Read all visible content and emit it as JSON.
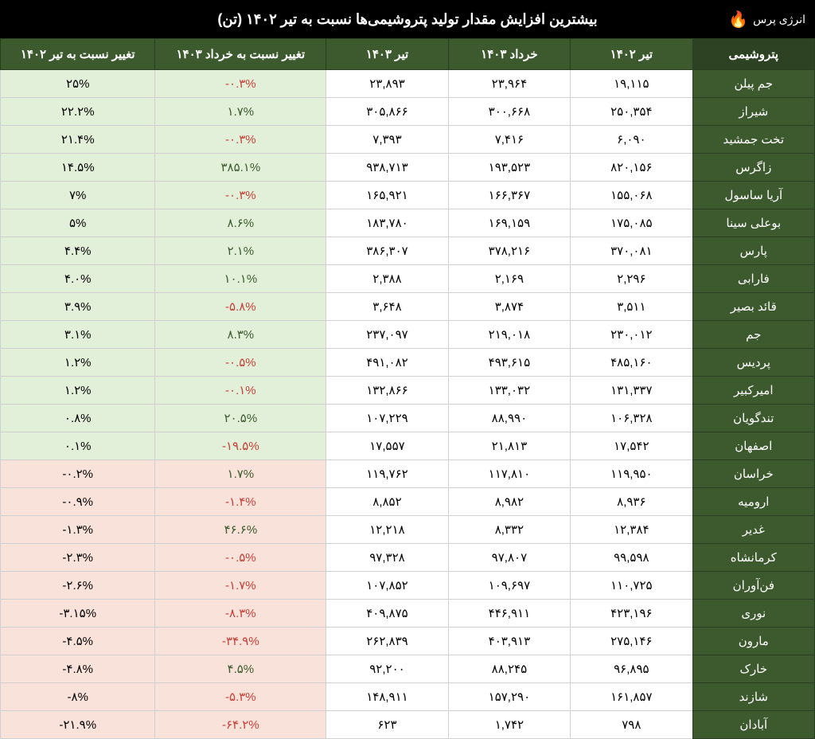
{
  "title": "بیشترین افزایش مقدار تولید پتروشیمی‌ها نسبت به تیر ۱۴۰۲  (تن)",
  "logo_text": "انرژی پرس",
  "columns": {
    "name": "پتروشیمی",
    "tir1402": "تیر ۱۴۰۲",
    "khordad1403": "خرداد ۱۴۰۳",
    "tir1403": "تیر ۱۴۰۳",
    "chg_khordad": "تغییر نسبت به خرداد ۱۴۰۳",
    "chg_tir": "تغییر نسبت به تیر ۱۴۰۲"
  },
  "rows": [
    {
      "name": "جم پیلن",
      "tir1402": "۱۹,۱۱۵",
      "khordad1403": "۲۳,۹۶۴",
      "tir1403": "۲۳,۸۹۳",
      "chg_k": "-۰.۳%",
      "chg_k_sign": "neg",
      "chg_t": "۲۵%",
      "chg_t_sign": "pos"
    },
    {
      "name": "شیراز",
      "tir1402": "۲۵۰,۳۵۴",
      "khordad1403": "۳۰۰,۶۶۸",
      "tir1403": "۳۰۵,۸۶۶",
      "chg_k": "۱.۷%",
      "chg_k_sign": "pos",
      "chg_t": "۲۲.۲%",
      "chg_t_sign": "pos"
    },
    {
      "name": "تخت جمشید",
      "tir1402": "۶,۰۹۰",
      "khordad1403": "۷,۴۱۶",
      "tir1403": "۷,۳۹۳",
      "chg_k": "-۰.۳%",
      "chg_k_sign": "neg",
      "chg_t": "۲۱.۴%",
      "chg_t_sign": "pos"
    },
    {
      "name": "زاگرس",
      "tir1402": "۸۲۰,۱۵۶",
      "khordad1403": "۱۹۳,۵۲۳",
      "tir1403": "۹۳۸,۷۱۳",
      "chg_k": "۳۸۵.۱%",
      "chg_k_sign": "pos",
      "chg_t": "۱۴.۵%",
      "chg_t_sign": "pos"
    },
    {
      "name": "آریا ساسول",
      "tir1402": "۱۵۵,۰۶۸",
      "khordad1403": "۱۶۶,۳۶۷",
      "tir1403": "۱۶۵,۹۲۱",
      "chg_k": "-۰.۳%",
      "chg_k_sign": "neg",
      "chg_t": "۷%",
      "chg_t_sign": "pos"
    },
    {
      "name": "بوعلی سینا",
      "tir1402": "۱۷۵,۰۸۵",
      "khordad1403": "۱۶۹,۱۵۹",
      "tir1403": "۱۸۳,۷۸۰",
      "chg_k": "۸.۶%",
      "chg_k_sign": "pos",
      "chg_t": "۵%",
      "chg_t_sign": "pos"
    },
    {
      "name": "پارس",
      "tir1402": "۳۷۰,۰۸۱",
      "khordad1403": "۳۷۸,۲۱۶",
      "tir1403": "۳۸۶,۳۰۷",
      "chg_k": "۲.۱%",
      "chg_k_sign": "pos",
      "chg_t": "۴.۴%",
      "chg_t_sign": "pos"
    },
    {
      "name": "فارابی",
      "tir1402": "۲,۲۹۶",
      "khordad1403": "۲,۱۶۹",
      "tir1403": "۲,۳۸۸",
      "chg_k": "۱۰.۱%",
      "chg_k_sign": "pos",
      "chg_t": "۴.۰%",
      "chg_t_sign": "pos"
    },
    {
      "name": "قائد بصیر",
      "tir1402": "۳,۵۱۱",
      "khordad1403": "۳,۸۷۴",
      "tir1403": "۳,۶۴۸",
      "chg_k": "-۵.۸%",
      "chg_k_sign": "neg",
      "chg_t": "۳.۹%",
      "chg_t_sign": "pos"
    },
    {
      "name": "جم",
      "tir1402": "۲۳۰,۰۱۲",
      "khordad1403": "۲۱۹,۰۱۸",
      "tir1403": "۲۳۷,۰۹۷",
      "chg_k": "۸.۳%",
      "chg_k_sign": "pos",
      "chg_t": "۳.۱%",
      "chg_t_sign": "pos"
    },
    {
      "name": "پردیس",
      "tir1402": "۴۸۵,۱۶۰",
      "khordad1403": "۴۹۳,۶۱۵",
      "tir1403": "۴۹۱,۰۸۲",
      "chg_k": "-۰.۵%",
      "chg_k_sign": "neg",
      "chg_t": "۱.۲%",
      "chg_t_sign": "pos"
    },
    {
      "name": "امیرکبیر",
      "tir1402": "۱۳۱,۳۳۷",
      "khordad1403": "۱۳۳,۰۳۲",
      "tir1403": "۱۳۲,۸۶۶",
      "chg_k": "-۰.۱%",
      "chg_k_sign": "neg",
      "chg_t": "۱.۲%",
      "chg_t_sign": "pos"
    },
    {
      "name": "تندگویان",
      "tir1402": "۱۰۶,۳۲۸",
      "khordad1403": "۸۸,۹۹۰",
      "tir1403": "۱۰۷,۲۲۹",
      "chg_k": "۲۰.۵%",
      "chg_k_sign": "pos",
      "chg_t": "۰.۸%",
      "chg_t_sign": "pos"
    },
    {
      "name": "اصفهان",
      "tir1402": "۱۷,۵۴۲",
      "khordad1403": "۲۱,۸۱۳",
      "tir1403": "۱۷,۵۵۷",
      "chg_k": "-۱۹.۵%",
      "chg_k_sign": "neg",
      "chg_t": "۰.۱%",
      "chg_t_sign": "pos"
    },
    {
      "name": "خراسان",
      "tir1402": "۱۱۹,۹۵۰",
      "khordad1403": "۱۱۷,۸۱۰",
      "tir1403": "۱۱۹,۷۶۲",
      "chg_k": "۱.۷%",
      "chg_k_sign": "pos",
      "chg_t": "-۰.۲%",
      "chg_t_sign": "neg"
    },
    {
      "name": "ارومیه",
      "tir1402": "۸,۹۳۶",
      "khordad1403": "۸,۹۸۲",
      "tir1403": "۸,۸۵۲",
      "chg_k": "-۱.۴%",
      "chg_k_sign": "neg",
      "chg_t": "-۰.۹%",
      "chg_t_sign": "neg"
    },
    {
      "name": "غدیر",
      "tir1402": "۱۲,۳۸۴",
      "khordad1403": "۸,۳۳۲",
      "tir1403": "۱۲,۲۱۸",
      "chg_k": "۴۶.۶%",
      "chg_k_sign": "pos",
      "chg_t": "-۱.۳%",
      "chg_t_sign": "neg"
    },
    {
      "name": "کرمانشاه",
      "tir1402": "۹۹,۵۹۸",
      "khordad1403": "۹۷,۸۰۷",
      "tir1403": "۹۷,۳۲۸",
      "chg_k": "-۰.۵%",
      "chg_k_sign": "neg",
      "chg_t": "-۲.۳%",
      "chg_t_sign": "neg"
    },
    {
      "name": "فن‌آوران",
      "tir1402": "۱۱۰,۷۲۵",
      "khordad1403": "۱۰۹,۶۹۷",
      "tir1403": "۱۰۷,۸۵۲",
      "chg_k": "-۱.۷%",
      "chg_k_sign": "neg",
      "chg_t": "-۲.۶%",
      "chg_t_sign": "neg"
    },
    {
      "name": "نوری",
      "tir1402": "۴۲۳,۱۹۶",
      "khordad1403": "۴۴۶,۹۱۱",
      "tir1403": "۴۰۹,۸۷۵",
      "chg_k": "-۸.۳%",
      "chg_k_sign": "neg",
      "chg_t": "-۳.۱۵%",
      "chg_t_sign": "neg"
    },
    {
      "name": "مارون",
      "tir1402": "۲۷۵,۱۴۶",
      "khordad1403": "۴۰۳,۹۱۳",
      "tir1403": "۲۶۲,۸۳۹",
      "chg_k": "-۳۴.۹%",
      "chg_k_sign": "neg",
      "chg_t": "-۴.۵%",
      "chg_t_sign": "neg"
    },
    {
      "name": "خارک",
      "tir1402": "۹۶,۸۹۵",
      "khordad1403": "۸۸,۲۴۵",
      "tir1403": "۹۲,۲۰۰",
      "chg_k": "۴.۵%",
      "chg_k_sign": "pos",
      "chg_t": "-۴.۸%",
      "chg_t_sign": "neg"
    },
    {
      "name": "شازند",
      "tir1402": "۱۶۱,۸۵۷",
      "khordad1403": "۱۵۷,۲۹۰",
      "tir1403": "۱۴۸,۹۱۱",
      "chg_k": "-۵.۳%",
      "chg_k_sign": "neg",
      "chg_t": "-۸%",
      "chg_t_sign": "neg"
    },
    {
      "name": "آبادان",
      "tir1402": "۷۹۸",
      "khordad1403": "۱,۷۴۲",
      "tir1403": "۶۲۳",
      "chg_k": "-۶۴.۲%",
      "chg_k_sign": "neg",
      "chg_t": "-۲۱.۹%",
      "chg_t_sign": "neg"
    }
  ]
}
